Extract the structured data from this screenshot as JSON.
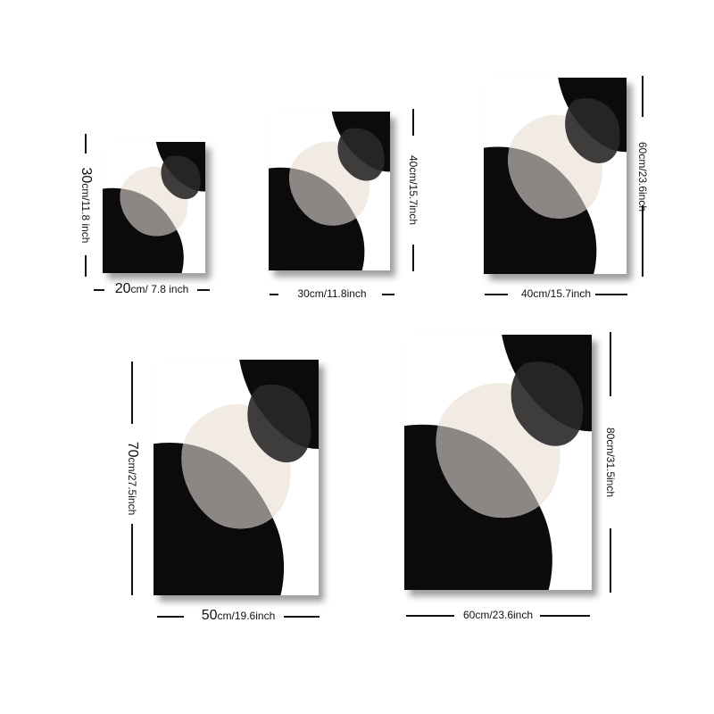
{
  "palette": {
    "black": "#0b0b0b",
    "dark": "#3f3d3c",
    "mid": "#8c8784",
    "cream": "#f1ebe4",
    "white": "#ffffff"
  },
  "sizes": [
    {
      "id": "20x30",
      "width_label_num": "20",
      "width_label_rest": "cm/ 7.8 inch",
      "height_label_num": "30",
      "height_label_rest": "cm/11.8 inch"
    },
    {
      "id": "30x40",
      "width_label": "30cm/11.8inch",
      "height_label": "40cm/15.7inch"
    },
    {
      "id": "40x60",
      "width_label": "40cm/15.7inch",
      "height_label": "60cm/23.6inch"
    },
    {
      "id": "50x70",
      "width_label_num": "50",
      "width_label_rest": "cm/19.6inch",
      "height_label_num": "70",
      "height_label_rest": "cm/27.5inch"
    },
    {
      "id": "60x80",
      "width_label": "60cm/23.6inch",
      "height_label": "80cm/31.5inch"
    }
  ]
}
